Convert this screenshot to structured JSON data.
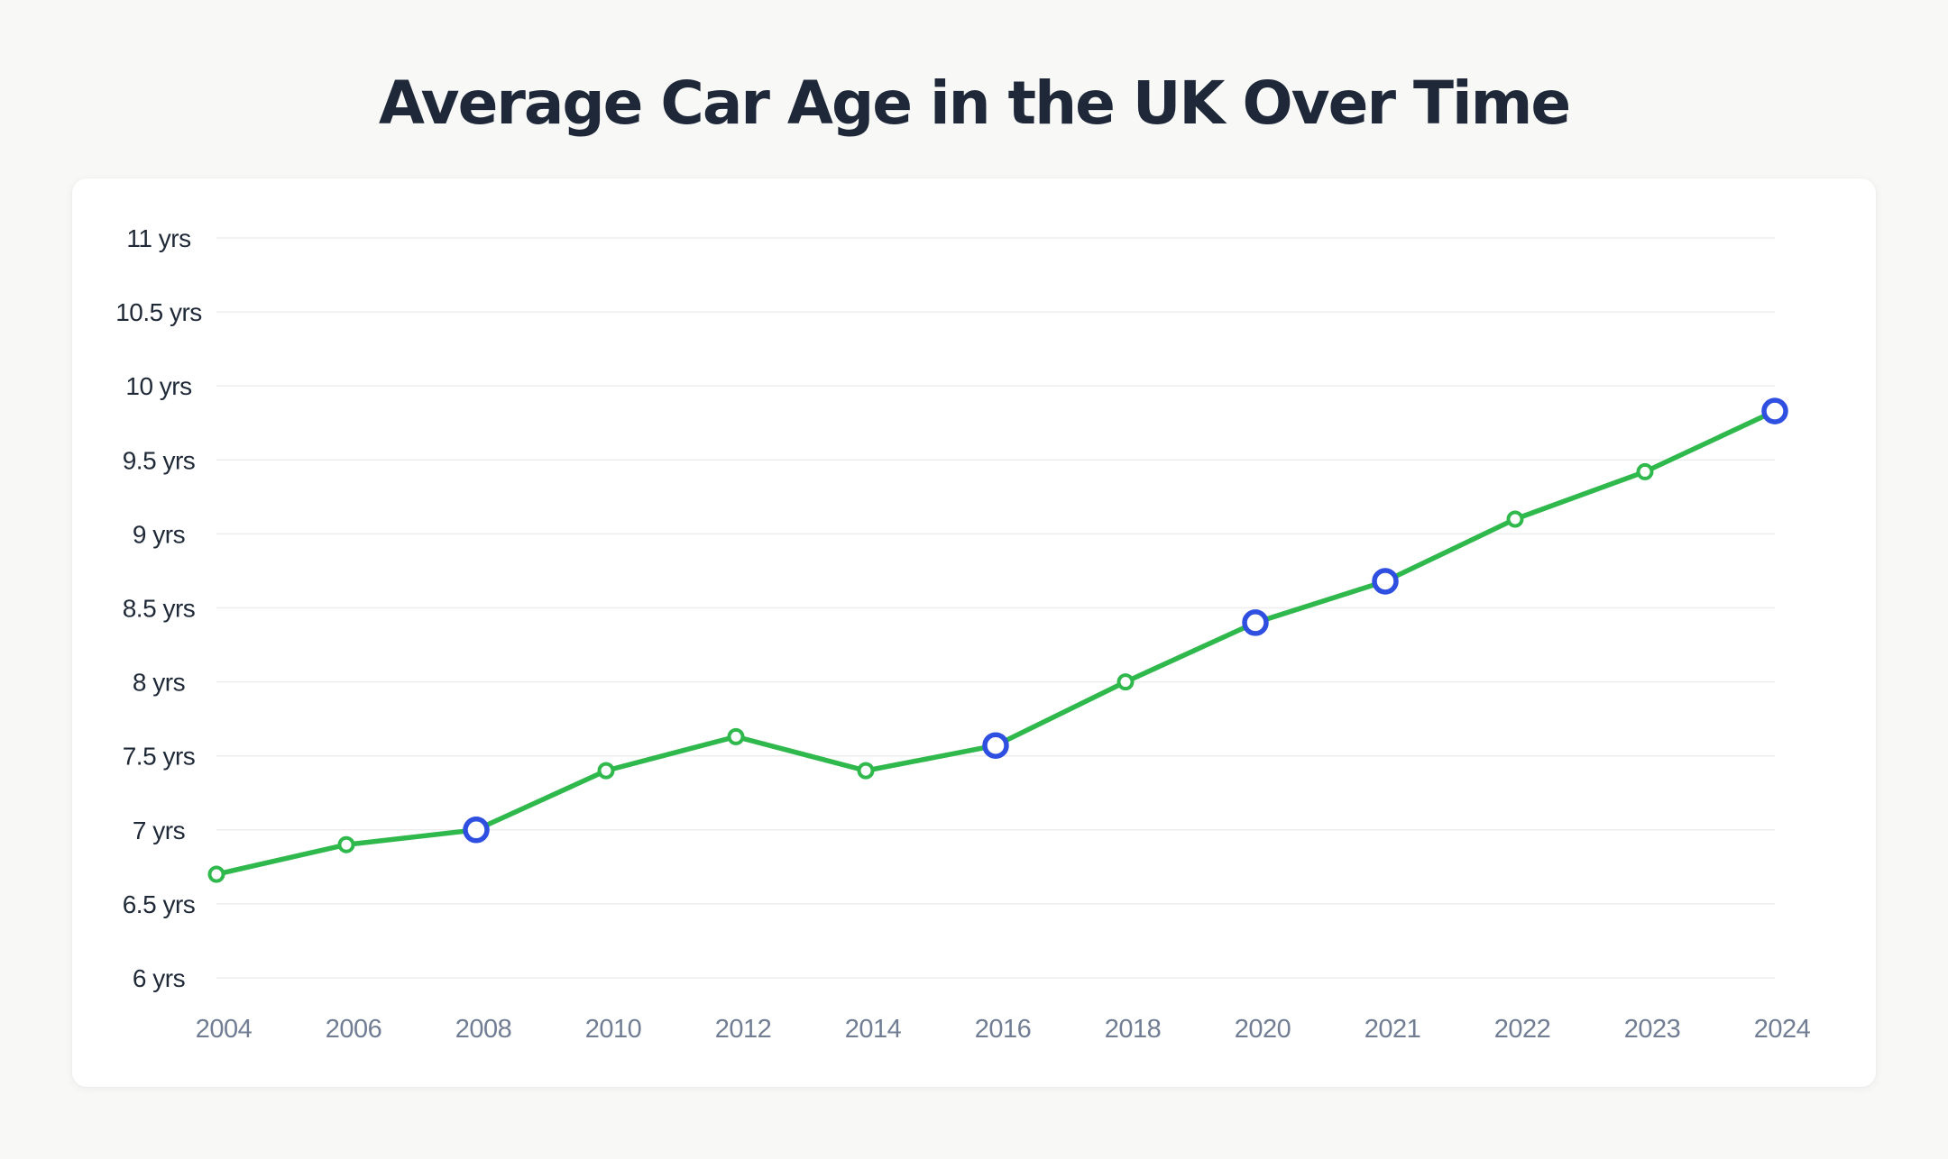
{
  "title": "Average Car Age in the UK Over Time",
  "colors": {
    "background": "#f8f8f7",
    "card": "#ffffff",
    "title": "#1e2838",
    "line": "#2fb84c",
    "highlight": "#2f4fe0",
    "grid": "#ededed",
    "ytick": "#1f2937",
    "xtick": "#707d93"
  },
  "chart_data": {
    "type": "line",
    "title": "Average Car Age in the UK Over Time",
    "xlabel": "",
    "ylabel": "",
    "categories": [
      "2004",
      "2006",
      "2008",
      "2010",
      "2012",
      "2014",
      "2016",
      "2018",
      "2020",
      "2021",
      "2022",
      "2023",
      "2024"
    ],
    "series": [
      {
        "values": [
          6.7,
          6.9,
          7.0,
          7.4,
          7.63,
          7.4,
          7.57,
          8.0,
          8.4,
          8.68,
          9.1,
          9.42,
          9.83
        ],
        "highlighted": [
          false,
          false,
          true,
          false,
          false,
          false,
          true,
          false,
          true,
          true,
          false,
          false,
          true
        ]
      }
    ],
    "ylim": [
      6,
      11
    ],
    "yticks": [
      {
        "value": 11,
        "label": "11 yrs"
      },
      {
        "value": 10.5,
        "label": "10.5 yrs"
      },
      {
        "value": 10,
        "label": "10 yrs"
      },
      {
        "value": 9.5,
        "label": "9.5 yrs"
      },
      {
        "value": 9,
        "label": "9 yrs"
      },
      {
        "value": 8.5,
        "label": "8.5 yrs"
      },
      {
        "value": 8,
        "label": "8 yrs"
      },
      {
        "value": 7.5,
        "label": "7.5 yrs"
      },
      {
        "value": 7,
        "label": "7 yrs"
      },
      {
        "value": 6.5,
        "label": "6.5 yrs"
      },
      {
        "value": 6,
        "label": "6 yrs"
      }
    ],
    "grid": true,
    "legend": "none"
  }
}
